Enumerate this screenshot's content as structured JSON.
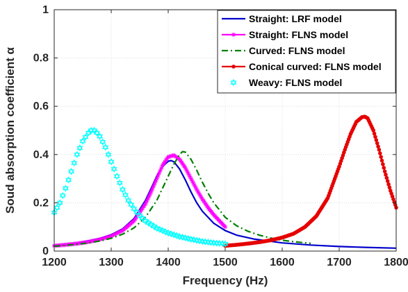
{
  "chart_data": {
    "type": "line",
    "title": "",
    "xlabel": "Frequency (Hz)",
    "ylabel": "Soud absorption coefficient α",
    "xlim": [
      1200,
      1800
    ],
    "ylim": [
      0,
      1
    ],
    "x_ticks": [
      1200,
      1300,
      1400,
      1500,
      1600,
      1700,
      1800
    ],
    "y_ticks": [
      0,
      0.2,
      0.4,
      0.6,
      0.8,
      1
    ],
    "x_tick_labels": [
      "1200",
      "1300",
      "1400",
      "1500",
      "1600",
      "1700",
      "1800"
    ],
    "y_tick_labels": [
      "0",
      "0.2",
      "0.4",
      "0.6",
      "0.8",
      "1"
    ],
    "grid": true,
    "legend_position": "top-right",
    "series": [
      {
        "name": "Straight: LRF model",
        "color": "#0000cc",
        "line_style": "solid",
        "marker": "none",
        "x": [
          1200,
          1220,
          1240,
          1260,
          1280,
          1300,
          1320,
          1340,
          1360,
          1370,
          1380,
          1390,
          1400,
          1405,
          1410,
          1420,
          1430,
          1440,
          1450,
          1460,
          1480,
          1500,
          1520,
          1550,
          1600,
          1650,
          1700,
          1750,
          1800
        ],
        "y": [
          0.023,
          0.028,
          0.034,
          0.042,
          0.052,
          0.068,
          0.092,
          0.135,
          0.21,
          0.26,
          0.31,
          0.35,
          0.372,
          0.375,
          0.37,
          0.34,
          0.295,
          0.245,
          0.2,
          0.165,
          0.115,
          0.085,
          0.066,
          0.05,
          0.034,
          0.025,
          0.019,
          0.015,
          0.012
        ]
      },
      {
        "name": "Straight: FLNS model",
        "color": "#ff00ff",
        "line_style": "solid",
        "marker": "asterisk",
        "x": [
          1200,
          1220,
          1240,
          1260,
          1280,
          1300,
          1320,
          1340,
          1360,
          1370,
          1380,
          1390,
          1400,
          1410,
          1420,
          1430,
          1440,
          1450,
          1460,
          1470,
          1480,
          1490,
          1500
        ],
        "y": [
          0.022,
          0.026,
          0.031,
          0.038,
          0.048,
          0.062,
          0.085,
          0.125,
          0.195,
          0.245,
          0.3,
          0.355,
          0.39,
          0.397,
          0.38,
          0.345,
          0.3,
          0.255,
          0.215,
          0.18,
          0.15,
          0.125,
          0.1
        ]
      },
      {
        "name": "Curved: FLNS model",
        "color": "#007f00",
        "line_style": "dashdot",
        "marker": "none",
        "x": [
          1200,
          1220,
          1240,
          1260,
          1280,
          1300,
          1320,
          1340,
          1360,
          1380,
          1400,
          1410,
          1420,
          1425,
          1430,
          1440,
          1450,
          1460,
          1470,
          1480,
          1500,
          1520,
          1540,
          1560,
          1580,
          1600,
          1620,
          1650
        ],
        "y": [
          0.02,
          0.024,
          0.028,
          0.034,
          0.042,
          0.053,
          0.07,
          0.096,
          0.14,
          0.21,
          0.31,
          0.36,
          0.4,
          0.412,
          0.41,
          0.38,
          0.335,
          0.285,
          0.24,
          0.2,
          0.14,
          0.105,
          0.082,
          0.066,
          0.054,
          0.045,
          0.039,
          0.032
        ]
      },
      {
        "name": "Conical curved: FLNS model",
        "color": "#e60000",
        "line_style": "solid",
        "marker": "dot",
        "x": [
          1500,
          1520,
          1540,
          1560,
          1580,
          1600,
          1620,
          1640,
          1660,
          1680,
          1700,
          1710,
          1720,
          1730,
          1740,
          1745,
          1750,
          1760,
          1770,
          1780,
          1790,
          1800
        ],
        "y": [
          0.022,
          0.026,
          0.031,
          0.037,
          0.045,
          0.056,
          0.072,
          0.1,
          0.145,
          0.22,
          0.35,
          0.42,
          0.485,
          0.535,
          0.555,
          0.557,
          0.55,
          0.5,
          0.42,
          0.33,
          0.25,
          0.18
        ]
      },
      {
        "name": "Weavy: FLNS model",
        "color": "#00ffff",
        "line_style": "none",
        "marker": "hexagram",
        "x": [
          1200,
          1210,
          1220,
          1230,
          1240,
          1250,
          1260,
          1265,
          1270,
          1275,
          1280,
          1290,
          1300,
          1310,
          1320,
          1330,
          1340,
          1350,
          1360,
          1380,
          1400,
          1420,
          1440,
          1460,
          1480,
          1500
        ],
        "y": [
          0.16,
          0.2,
          0.26,
          0.33,
          0.4,
          0.455,
          0.49,
          0.5,
          0.5,
          0.49,
          0.475,
          0.43,
          0.37,
          0.31,
          0.255,
          0.21,
          0.175,
          0.147,
          0.125,
          0.095,
          0.075,
          0.06,
          0.049,
          0.04,
          0.034,
          0.03
        ]
      }
    ]
  }
}
